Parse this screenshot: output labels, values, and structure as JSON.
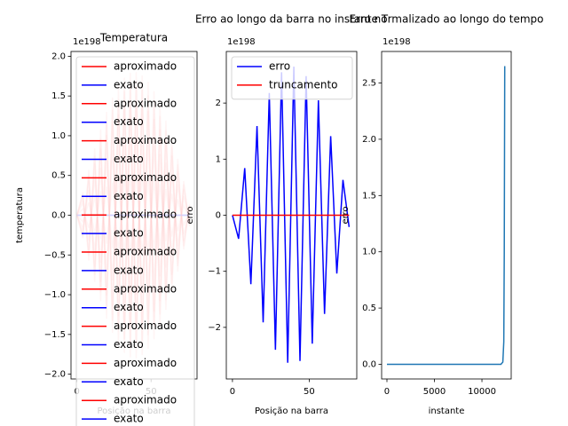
{
  "chart_data": [
    {
      "type": "line",
      "title": "Temperatura",
      "x_label": "Posição na barra",
      "y_label": "temperatura",
      "offset_label": "1e198",
      "xlim": [
        -4,
        81
      ],
      "xticks": [
        0,
        50
      ],
      "ylim": [
        -2.06,
        2.06
      ],
      "yticks": [
        {
          "value": -2.0,
          "label": "−2.0"
        },
        {
          "value": -1.5,
          "label": "−1.5"
        },
        {
          "value": -1.0,
          "label": "−1.0"
        },
        {
          "value": -0.5,
          "label": "−0.5"
        },
        {
          "value": 0.0,
          "label": "0.0"
        },
        {
          "value": 0.5,
          "label": "0.5"
        },
        {
          "value": 1.0,
          "label": "1.0"
        },
        {
          "value": 1.5,
          "label": "1.5"
        },
        {
          "value": 2.0,
          "label": "2.0"
        }
      ],
      "legend": "upper left",
      "line_alpha": 0.2,
      "x": [
        0,
        4,
        8,
        12,
        16,
        20,
        24,
        28,
        32,
        36,
        40,
        44,
        48,
        52,
        56,
        60,
        64,
        68,
        72,
        76
      ],
      "series": [
        {
          "name": "aproximado",
          "color": "#ff0000",
          "values": [
            0,
            -0.29,
            0.57,
            -0.84,
            1.08,
            -1.3,
            1.48,
            -1.63,
            1.73,
            -1.79,
            1.8,
            -1.76,
            1.68,
            -1.56,
            1.39,
            -1.19,
            0.96,
            -0.71,
            0.43,
            -0.14
          ]
        },
        {
          "name": "exato",
          "color": "#0000ff",
          "values": [
            0,
            0,
            0,
            0,
            0,
            0,
            0,
            0,
            0,
            0,
            0,
            0,
            0,
            0,
            0,
            0,
            0,
            0,
            0,
            0
          ]
        },
        {
          "name": "aproximado",
          "color": "#ff0000",
          "values": [
            0,
            0.29,
            -0.57,
            0.84,
            -1.08,
            1.3,
            -1.48,
            1.63,
            -1.73,
            1.79,
            -1.8,
            1.76,
            -1.68,
            1.56,
            -1.39,
            1.19,
            -0.96,
            0.71,
            -0.43,
            0.14
          ]
        },
        {
          "name": "exato",
          "color": "#0000ff",
          "values": [
            0,
            0,
            0,
            0,
            0,
            0,
            0,
            0,
            0,
            0,
            0,
            0,
            0,
            0,
            0,
            0,
            0,
            0,
            0,
            0
          ]
        },
        {
          "name": "aproximado",
          "color": "#ff0000",
          "values": [
            0,
            -0.26,
            0.51,
            -0.75,
            0.97,
            -1.17,
            1.33,
            -1.46,
            1.56,
            -1.61,
            1.62,
            -1.58,
            1.51,
            -1.4,
            1.25,
            -1.07,
            0.86,
            -0.64,
            0.39,
            -0.13
          ]
        },
        {
          "name": "exato",
          "color": "#0000ff",
          "values": [
            0,
            0,
            0,
            0,
            0,
            0,
            0,
            0,
            0,
            0,
            0,
            0,
            0,
            0,
            0,
            0,
            0,
            0,
            0,
            0
          ]
        },
        {
          "name": "aproximado",
          "color": "#ff0000",
          "values": [
            0,
            0.26,
            -0.51,
            0.75,
            -0.97,
            1.17,
            -1.33,
            1.46,
            -1.56,
            1.61,
            -1.62,
            1.58,
            -1.51,
            1.4,
            -1.25,
            1.07,
            -0.86,
            0.64,
            -0.39,
            0.13
          ]
        },
        {
          "name": "exato",
          "color": "#0000ff",
          "values": [
            0,
            0,
            0,
            0,
            0,
            0,
            0,
            0,
            0,
            0,
            0,
            0,
            0,
            0,
            0,
            0,
            0,
            0,
            0,
            0
          ]
        },
        {
          "name": "aproximado",
          "color": "#ff0000",
          "values": [
            0,
            -0.22,
            0.44,
            -0.65,
            0.84,
            -1.01,
            1.15,
            -1.27,
            1.35,
            -1.39,
            1.4,
            -1.37,
            1.31,
            -1.21,
            1.08,
            -0.93,
            0.75,
            -0.55,
            0.33,
            -0.11
          ]
        },
        {
          "name": "exato",
          "color": "#0000ff",
          "values": [
            0,
            0,
            0,
            0,
            0,
            0,
            0,
            0,
            0,
            0,
            0,
            0,
            0,
            0,
            0,
            0,
            0,
            0,
            0,
            0
          ]
        },
        {
          "name": "aproximado",
          "color": "#ff0000",
          "values": [
            0,
            0.22,
            -0.44,
            0.65,
            -0.84,
            1.01,
            -1.15,
            1.27,
            -1.35,
            1.39,
            -1.4,
            1.37,
            -1.31,
            1.21,
            -1.08,
            0.93,
            -0.75,
            0.55,
            -0.33,
            0.11
          ]
        },
        {
          "name": "exato",
          "color": "#0000ff",
          "values": [
            0,
            0,
            0,
            0,
            0,
            0,
            0,
            0,
            0,
            0,
            0,
            0,
            0,
            0,
            0,
            0,
            0,
            0,
            0,
            0
          ]
        },
        {
          "name": "aproximado",
          "color": "#ff0000",
          "values": [
            0,
            -0.16,
            0.32,
            -0.47,
            0.6,
            -0.72,
            0.82,
            -0.9,
            0.96,
            -0.99,
            1.0,
            -0.98,
            0.94,
            -0.87,
            0.77,
            -0.66,
            0.53,
            -0.39,
            0.24,
            -0.08
          ]
        },
        {
          "name": "exato",
          "color": "#0000ff",
          "values": [
            0,
            0,
            0,
            0,
            0,
            0,
            0,
            0,
            0,
            0,
            0,
            0,
            0,
            0,
            0,
            0,
            0,
            0,
            0,
            0
          ]
        },
        {
          "name": "aproximado",
          "color": "#ff0000",
          "values": [
            0,
            0.16,
            -0.32,
            0.47,
            -0.6,
            0.72,
            -0.82,
            0.9,
            -0.96,
            0.99,
            -1.0,
            0.98,
            -0.94,
            0.87,
            -0.77,
            0.66,
            -0.53,
            0.39,
            -0.24,
            0.08
          ]
        },
        {
          "name": "exato",
          "color": "#0000ff",
          "values": [
            0,
            0,
            0,
            0,
            0,
            0,
            0,
            0,
            0,
            0,
            0,
            0,
            0,
            0,
            0,
            0,
            0,
            0,
            0,
            0
          ]
        },
        {
          "name": "aproximado",
          "color": "#ff0000",
          "values": [
            0,
            -0.08,
            0.16,
            -0.23,
            0.3,
            -0.36,
            0.41,
            -0.45,
            0.48,
            -0.5,
            0.5,
            -0.49,
            0.47,
            -0.43,
            0.39,
            -0.33,
            0.27,
            -0.2,
            0.12,
            -0.04
          ]
        },
        {
          "name": "exato",
          "color": "#0000ff",
          "values": [
            0,
            0,
            0,
            0,
            0,
            0,
            0,
            0,
            0,
            0,
            0,
            0,
            0,
            0,
            0,
            0,
            0,
            0,
            0,
            0
          ]
        },
        {
          "name": "aproximado",
          "color": "#ff0000",
          "values": [
            0,
            0.08,
            -0.16,
            0.23,
            -0.3,
            0.36,
            -0.41,
            0.45,
            -0.48,
            0.5,
            -0.5,
            0.49,
            -0.47,
            0.43,
            -0.39,
            0.33,
            -0.27,
            0.2,
            -0.12,
            0.04
          ]
        },
        {
          "name": "exato",
          "color": "#0000ff",
          "values": [
            0,
            0,
            0,
            0,
            0,
            0,
            0,
            0,
            0,
            0,
            0,
            0,
            0,
            0,
            0,
            0,
            0,
            0,
            0,
            0
          ]
        }
      ]
    },
    {
      "type": "line",
      "title": "Erro ao longo da barra no instante T",
      "x_label": "Posição na barra",
      "y_label": "erro",
      "offset_label": "1e198",
      "xlim": [
        -4,
        81
      ],
      "xticks": [
        0,
        50
      ],
      "ylim": [
        -2.92,
        2.92
      ],
      "yticks": [
        {
          "value": -2,
          "label": "−2"
        },
        {
          "value": -1,
          "label": "−1"
        },
        0,
        1,
        2
      ],
      "legend": "upper left",
      "line_alpha": 1,
      "x": [
        0,
        4,
        8,
        12,
        16,
        20,
        24,
        28,
        32,
        36,
        40,
        44,
        48,
        52,
        56,
        60,
        64,
        68,
        72,
        76
      ],
      "series": [
        {
          "name": "erro",
          "color": "#0000ff",
          "values": [
            0,
            -0.42,
            0.84,
            -1.23,
            1.59,
            -1.91,
            2.18,
            -2.4,
            2.55,
            -2.63,
            2.65,
            -2.6,
            2.48,
            -2.29,
            2.05,
            -1.76,
            1.41,
            -1.04,
            0.63,
            -0.21
          ]
        },
        {
          "name": "truncamento",
          "color": "#ff0000",
          "values": [
            0,
            0,
            0,
            0,
            0,
            0,
            0,
            0,
            0,
            0,
            0,
            0,
            0,
            0,
            0,
            0,
            0,
            0,
            0,
            0
          ]
        }
      ]
    },
    {
      "type": "line",
      "title": "Erro normalizado ao longo do tempo",
      "x_label": "instante",
      "y_label": "erro",
      "offset_label": "1e198",
      "xlim": [
        -560,
        13080
      ],
      "xticks": [
        0,
        5000,
        10000
      ],
      "ylim": [
        -0.13,
        2.78
      ],
      "yticks": [
        {
          "value": 0,
          "label": "0.0"
        },
        {
          "value": 0.5,
          "label": "0.5"
        },
        {
          "value": 1.0,
          "label": "1.0"
        },
        {
          "value": 1.5,
          "label": "1.5"
        },
        {
          "value": 2.0,
          "label": "2.0"
        },
        {
          "value": 2.5,
          "label": "2.5"
        }
      ],
      "line_alpha": 1,
      "x": [
        0,
        2000,
        4000,
        6000,
        8000,
        10000,
        12000,
        12200,
        12300,
        12350,
        12400
      ],
      "series": [
        {
          "color": "#1f77b4",
          "values": [
            0,
            0,
            0,
            0,
            0,
            0,
            0,
            0.02,
            0.2,
            1.0,
            2.65
          ]
        }
      ]
    }
  ]
}
